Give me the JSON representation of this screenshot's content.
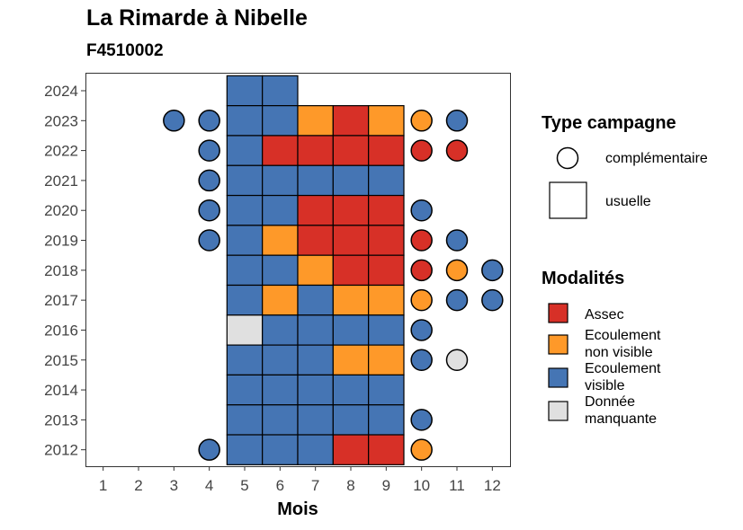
{
  "title": "La Rimarde à Nibelle",
  "subtitle": "F4510002",
  "chart_data": {
    "type": "heatmap",
    "xlabel": "Mois",
    "ylabel": "",
    "x_ticks": [
      "1",
      "2",
      "3",
      "4",
      "5",
      "6",
      "7",
      "8",
      "9",
      "10",
      "11",
      "12"
    ],
    "y_ticks": [
      "2012",
      "2013",
      "2014",
      "2015",
      "2016",
      "2017",
      "2018",
      "2019",
      "2020",
      "2021",
      "2022",
      "2023",
      "2024"
    ],
    "xlim": [
      0.5,
      12.5
    ],
    "ylim": [
      2011.45,
      2024.6
    ],
    "grid": false,
    "legend_position": "right",
    "legend_type": {
      "title": "Type campagne",
      "items": [
        {
          "key": "complementaire",
          "label": "complémentaire",
          "shape": "circle"
        },
        {
          "key": "usuelle",
          "label": "usuelle",
          "shape": "square"
        }
      ]
    },
    "legend_modalites": {
      "title": "Modalités",
      "items": [
        {
          "key": "assec",
          "lines": [
            "Assec"
          ],
          "color": "#D73027"
        },
        {
          "key": "ecoulement_non_visible",
          "lines": [
            "Ecoulement",
            "non visible"
          ],
          "color": "#FE9929"
        },
        {
          "key": "ecoulement_visible",
          "lines": [
            "Ecoulement",
            "visible"
          ],
          "color": "#4575B4"
        },
        {
          "key": "donnee_manquante",
          "lines": [
            "Donnée",
            "manquante"
          ],
          "color": "#E0E0E0"
        }
      ]
    },
    "colors": {
      "assec": "#D73027",
      "ecoulement_non_visible": "#FE9929",
      "ecoulement_visible": "#4575B4",
      "donnee_manquante": "#E0E0E0"
    },
    "observations": [
      {
        "year": 2024,
        "month": 5,
        "type": "usuelle",
        "modalite": "ecoulement_visible"
      },
      {
        "year": 2024,
        "month": 6,
        "type": "usuelle",
        "modalite": "ecoulement_visible"
      },
      {
        "year": 2023,
        "month": 3,
        "type": "complementaire",
        "modalite": "ecoulement_visible"
      },
      {
        "year": 2023,
        "month": 4,
        "type": "complementaire",
        "modalite": "ecoulement_visible"
      },
      {
        "year": 2023,
        "month": 5,
        "type": "usuelle",
        "modalite": "ecoulement_visible"
      },
      {
        "year": 2023,
        "month": 6,
        "type": "usuelle",
        "modalite": "ecoulement_visible"
      },
      {
        "year": 2023,
        "month": 7,
        "type": "usuelle",
        "modalite": "ecoulement_non_visible"
      },
      {
        "year": 2023,
        "month": 8,
        "type": "usuelle",
        "modalite": "assec"
      },
      {
        "year": 2023,
        "month": 9,
        "type": "usuelle",
        "modalite": "ecoulement_non_visible"
      },
      {
        "year": 2023,
        "month": 10,
        "type": "complementaire",
        "modalite": "ecoulement_non_visible"
      },
      {
        "year": 2023,
        "month": 11,
        "type": "complementaire",
        "modalite": "ecoulement_visible"
      },
      {
        "year": 2022,
        "month": 4,
        "type": "complementaire",
        "modalite": "ecoulement_visible"
      },
      {
        "year": 2022,
        "month": 5,
        "type": "usuelle",
        "modalite": "ecoulement_visible"
      },
      {
        "year": 2022,
        "month": 6,
        "type": "usuelle",
        "modalite": "assec"
      },
      {
        "year": 2022,
        "month": 7,
        "type": "usuelle",
        "modalite": "assec"
      },
      {
        "year": 2022,
        "month": 8,
        "type": "usuelle",
        "modalite": "assec"
      },
      {
        "year": 2022,
        "month": 9,
        "type": "usuelle",
        "modalite": "assec"
      },
      {
        "year": 2022,
        "month": 10,
        "type": "complementaire",
        "modalite": "assec"
      },
      {
        "year": 2022,
        "month": 11,
        "type": "complementaire",
        "modalite": "assec"
      },
      {
        "year": 2021,
        "month": 4,
        "type": "complementaire",
        "modalite": "ecoulement_visible"
      },
      {
        "year": 2021,
        "month": 5,
        "type": "usuelle",
        "modalite": "ecoulement_visible"
      },
      {
        "year": 2021,
        "month": 6,
        "type": "usuelle",
        "modalite": "ecoulement_visible"
      },
      {
        "year": 2021,
        "month": 7,
        "type": "usuelle",
        "modalite": "ecoulement_visible"
      },
      {
        "year": 2021,
        "month": 8,
        "type": "usuelle",
        "modalite": "ecoulement_visible"
      },
      {
        "year": 2021,
        "month": 9,
        "type": "usuelle",
        "modalite": "ecoulement_visible"
      },
      {
        "year": 2020,
        "month": 4,
        "type": "complementaire",
        "modalite": "ecoulement_visible"
      },
      {
        "year": 2020,
        "month": 5,
        "type": "usuelle",
        "modalite": "ecoulement_visible"
      },
      {
        "year": 2020,
        "month": 6,
        "type": "usuelle",
        "modalite": "ecoulement_visible"
      },
      {
        "year": 2020,
        "month": 7,
        "type": "usuelle",
        "modalite": "assec"
      },
      {
        "year": 2020,
        "month": 8,
        "type": "usuelle",
        "modalite": "assec"
      },
      {
        "year": 2020,
        "month": 9,
        "type": "usuelle",
        "modalite": "assec"
      },
      {
        "year": 2020,
        "month": 10,
        "type": "complementaire",
        "modalite": "ecoulement_visible"
      },
      {
        "year": 2019,
        "month": 4,
        "type": "complementaire",
        "modalite": "ecoulement_visible"
      },
      {
        "year": 2019,
        "month": 5,
        "type": "usuelle",
        "modalite": "ecoulement_visible"
      },
      {
        "year": 2019,
        "month": 6,
        "type": "usuelle",
        "modalite": "ecoulement_non_visible"
      },
      {
        "year": 2019,
        "month": 7,
        "type": "usuelle",
        "modalite": "assec"
      },
      {
        "year": 2019,
        "month": 8,
        "type": "usuelle",
        "modalite": "assec"
      },
      {
        "year": 2019,
        "month": 9,
        "type": "usuelle",
        "modalite": "assec"
      },
      {
        "year": 2019,
        "month": 10,
        "type": "complementaire",
        "modalite": "assec"
      },
      {
        "year": 2019,
        "month": 11,
        "type": "complementaire",
        "modalite": "ecoulement_visible"
      },
      {
        "year": 2018,
        "month": 5,
        "type": "usuelle",
        "modalite": "ecoulement_visible"
      },
      {
        "year": 2018,
        "month": 6,
        "type": "usuelle",
        "modalite": "ecoulement_visible"
      },
      {
        "year": 2018,
        "month": 7,
        "type": "usuelle",
        "modalite": "ecoulement_non_visible"
      },
      {
        "year": 2018,
        "month": 8,
        "type": "usuelle",
        "modalite": "assec"
      },
      {
        "year": 2018,
        "month": 9,
        "type": "usuelle",
        "modalite": "assec"
      },
      {
        "year": 2018,
        "month": 10,
        "type": "complementaire",
        "modalite": "assec"
      },
      {
        "year": 2018,
        "month": 11,
        "type": "complementaire",
        "modalite": "ecoulement_non_visible"
      },
      {
        "year": 2018,
        "month": 12,
        "type": "complementaire",
        "modalite": "ecoulement_visible"
      },
      {
        "year": 2017,
        "month": 5,
        "type": "usuelle",
        "modalite": "ecoulement_visible"
      },
      {
        "year": 2017,
        "month": 6,
        "type": "usuelle",
        "modalite": "ecoulement_non_visible"
      },
      {
        "year": 2017,
        "month": 7,
        "type": "usuelle",
        "modalite": "ecoulement_visible"
      },
      {
        "year": 2017,
        "month": 8,
        "type": "usuelle",
        "modalite": "ecoulement_non_visible"
      },
      {
        "year": 2017,
        "month": 9,
        "type": "usuelle",
        "modalite": "ecoulement_non_visible"
      },
      {
        "year": 2017,
        "month": 10,
        "type": "complementaire",
        "modalite": "ecoulement_non_visible"
      },
      {
        "year": 2017,
        "month": 11,
        "type": "complementaire",
        "modalite": "ecoulement_visible"
      },
      {
        "year": 2017,
        "month": 12,
        "type": "complementaire",
        "modalite": "ecoulement_visible"
      },
      {
        "year": 2016,
        "month": 5,
        "type": "usuelle",
        "modalite": "donnee_manquante"
      },
      {
        "year": 2016,
        "month": 6,
        "type": "usuelle",
        "modalite": "ecoulement_visible"
      },
      {
        "year": 2016,
        "month": 7,
        "type": "usuelle",
        "modalite": "ecoulement_visible"
      },
      {
        "year": 2016,
        "month": 8,
        "type": "usuelle",
        "modalite": "ecoulement_visible"
      },
      {
        "year": 2016,
        "month": 9,
        "type": "usuelle",
        "modalite": "ecoulement_visible"
      },
      {
        "year": 2016,
        "month": 10,
        "type": "complementaire",
        "modalite": "ecoulement_visible"
      },
      {
        "year": 2015,
        "month": 5,
        "type": "usuelle",
        "modalite": "ecoulement_visible"
      },
      {
        "year": 2015,
        "month": 6,
        "type": "usuelle",
        "modalite": "ecoulement_visible"
      },
      {
        "year": 2015,
        "month": 7,
        "type": "usuelle",
        "modalite": "ecoulement_visible"
      },
      {
        "year": 2015,
        "month": 8,
        "type": "usuelle",
        "modalite": "ecoulement_non_visible"
      },
      {
        "year": 2015,
        "month": 9,
        "type": "usuelle",
        "modalite": "ecoulement_non_visible"
      },
      {
        "year": 2015,
        "month": 10,
        "type": "complementaire",
        "modalite": "ecoulement_visible"
      },
      {
        "year": 2015,
        "month": 11,
        "type": "complementaire",
        "modalite": "donnee_manquante"
      },
      {
        "year": 2014,
        "month": 5,
        "type": "usuelle",
        "modalite": "ecoulement_visible"
      },
      {
        "year": 2014,
        "month": 6,
        "type": "usuelle",
        "modalite": "ecoulement_visible"
      },
      {
        "year": 2014,
        "month": 7,
        "type": "usuelle",
        "modalite": "ecoulement_visible"
      },
      {
        "year": 2014,
        "month": 8,
        "type": "usuelle",
        "modalite": "ecoulement_visible"
      },
      {
        "year": 2014,
        "month": 9,
        "type": "usuelle",
        "modalite": "ecoulement_visible"
      },
      {
        "year": 2013,
        "month": 5,
        "type": "usuelle",
        "modalite": "ecoulement_visible"
      },
      {
        "year": 2013,
        "month": 6,
        "type": "usuelle",
        "modalite": "ecoulement_visible"
      },
      {
        "year": 2013,
        "month": 7,
        "type": "usuelle",
        "modalite": "ecoulement_visible"
      },
      {
        "year": 2013,
        "month": 8,
        "type": "usuelle",
        "modalite": "ecoulement_visible"
      },
      {
        "year": 2013,
        "month": 9,
        "type": "usuelle",
        "modalite": "ecoulement_visible"
      },
      {
        "year": 2013,
        "month": 10,
        "type": "complementaire",
        "modalite": "ecoulement_visible"
      },
      {
        "year": 2012,
        "month": 4,
        "type": "complementaire",
        "modalite": "ecoulement_visible"
      },
      {
        "year": 2012,
        "month": 5,
        "type": "usuelle",
        "modalite": "ecoulement_visible"
      },
      {
        "year": 2012,
        "month": 6,
        "type": "usuelle",
        "modalite": "ecoulement_visible"
      },
      {
        "year": 2012,
        "month": 7,
        "type": "usuelle",
        "modalite": "ecoulement_visible"
      },
      {
        "year": 2012,
        "month": 8,
        "type": "usuelle",
        "modalite": "assec"
      },
      {
        "year": 2012,
        "month": 9,
        "type": "usuelle",
        "modalite": "assec"
      },
      {
        "year": 2012,
        "month": 10,
        "type": "complementaire",
        "modalite": "ecoulement_non_visible"
      }
    ]
  }
}
